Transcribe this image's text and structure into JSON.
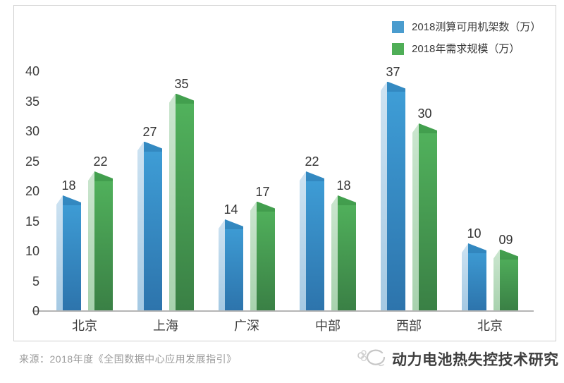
{
  "chart_data": {
    "type": "bar",
    "categories": [
      "北京",
      "上海",
      "广深",
      "中部",
      "西部",
      "北京"
    ],
    "series": [
      {
        "name": "2018测算可用机架数（万）",
        "values": [
          18,
          27,
          14,
          22,
          37,
          10
        ],
        "labels": [
          "18",
          "27",
          "14",
          "22",
          "37",
          "10"
        ],
        "colors": {
          "legend": "#4a9cce",
          "side_top": "#cee3f2",
          "side_bottom": "#a5c9e3",
          "face_top": "#3f9fd8",
          "face_bottom": "#2d74ac",
          "cap": "rgba(10,60,110,0.20)"
        }
      },
      {
        "name": "2018年需求规模（万）",
        "values": [
          22,
          35,
          17,
          18,
          30,
          9
        ],
        "labels": [
          "22",
          "35",
          "17",
          "18",
          "30",
          "09"
        ],
        "colors": {
          "legend": "#4fae57",
          "side_top": "#cbe6cf",
          "side_bottom": "#a8d2ae",
          "face_top": "#52b45d",
          "face_bottom": "#3a8045",
          "cap": "rgba(10,85,25,0.20)"
        }
      }
    ],
    "yticks": [
      0,
      5,
      10,
      15,
      20,
      25,
      30,
      35,
      40
    ],
    "ylim": [
      0,
      40
    ],
    "grid": false,
    "legend_position": "top-right",
    "axis_line_color": "#b5b5b5"
  },
  "footer": {
    "source": "来源：2018年度《全国数据中心应用发展指引》",
    "watermark": "动力电池热失控技术研究"
  }
}
